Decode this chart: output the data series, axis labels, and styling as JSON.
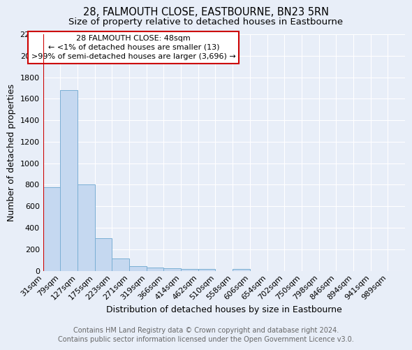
{
  "title": "28, FALMOUTH CLOSE, EASTBOURNE, BN23 5RN",
  "subtitle": "Size of property relative to detached houses in Eastbourne",
  "xlabel": "Distribution of detached houses by size in Eastbourne",
  "ylabel": "Number of detached properties",
  "footer_line1": "Contains HM Land Registry data © Crown copyright and database right 2024.",
  "footer_line2": "Contains public sector information licensed under the Open Government Licence v3.0.",
  "bin_labels": [
    "31sqm",
    "79sqm",
    "127sqm",
    "175sqm",
    "223sqm",
    "271sqm",
    "319sqm",
    "366sqm",
    "414sqm",
    "462sqm",
    "510sqm",
    "558sqm",
    "606sqm",
    "654sqm",
    "702sqm",
    "750sqm",
    "798sqm",
    "846sqm",
    "894sqm",
    "941sqm",
    "989sqm"
  ],
  "bar_values": [
    780,
    1680,
    800,
    300,
    115,
    40,
    30,
    25,
    20,
    20,
    0,
    20,
    0,
    0,
    0,
    0,
    0,
    0,
    0,
    0,
    0
  ],
  "bar_color": "#c5d8f0",
  "bar_edge_color": "#7aafd4",
  "red_line_x": 0,
  "ylim": [
    0,
    2200
  ],
  "yticks": [
    0,
    200,
    400,
    600,
    800,
    1000,
    1200,
    1400,
    1600,
    1800,
    2000,
    2200
  ],
  "annotation_title": "28 FALMOUTH CLOSE: 48sqm",
  "annotation_line1": "← <1% of detached houses are smaller (13)",
  "annotation_line2": ">99% of semi-detached houses are larger (3,696) →",
  "annotation_box_color": "#cc0000",
  "background_color": "#e8eef8",
  "grid_color": "#ffffff",
  "title_fontsize": 10.5,
  "subtitle_fontsize": 9.5,
  "axis_label_fontsize": 9,
  "tick_fontsize": 8,
  "footer_fontsize": 7,
  "ann_fontsize": 8
}
